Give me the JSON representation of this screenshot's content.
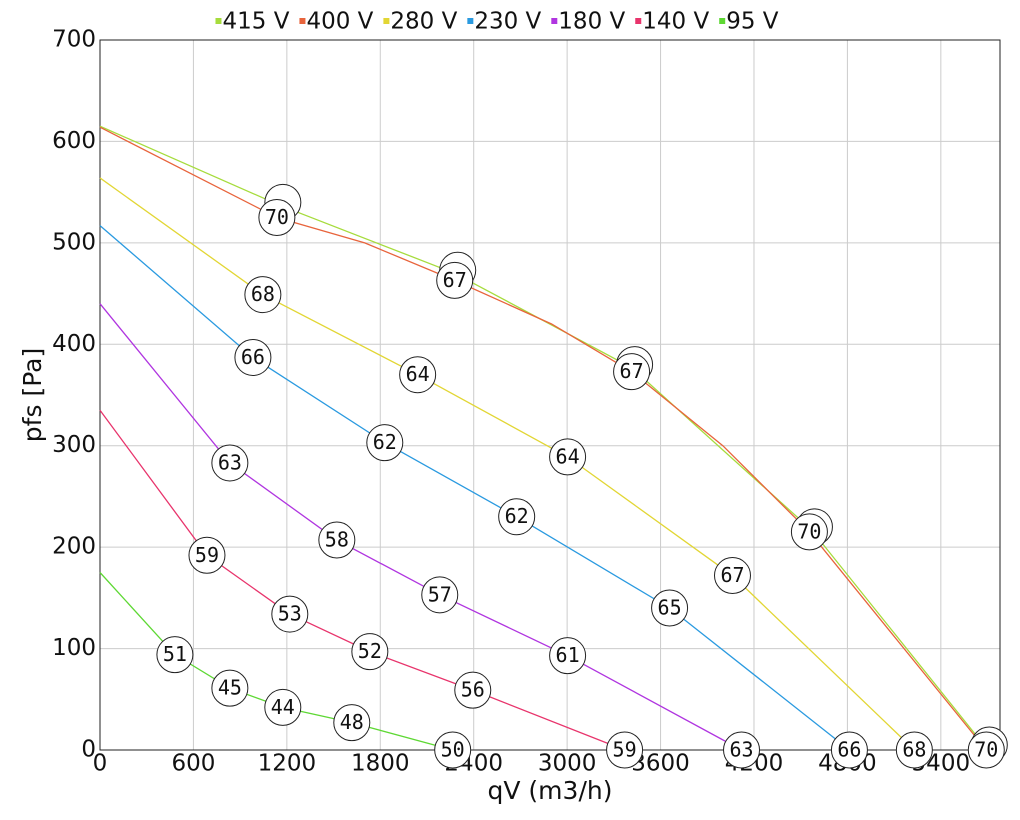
{
  "chart_data": {
    "type": "line",
    "x_label": "qV (m3/h)",
    "y_label": "pfs [Pa]",
    "xlim": [
      0,
      5780
    ],
    "ylim": [
      0,
      700
    ],
    "xticks": [
      0,
      600,
      1200,
      1800,
      2400,
      3000,
      3600,
      4200,
      4800,
      5400
    ],
    "yticks": [
      0,
      100,
      200,
      300,
      400,
      500,
      600,
      700
    ],
    "grid": true,
    "legend": "top",
    "series": [
      {
        "name": "415 V",
        "color": "#a6dc3c",
        "x": [
          0,
          1155,
          2278,
          3414,
          4569,
          5692
        ],
        "values": [
          615,
          537,
          470,
          377,
          217,
          2
        ]
      },
      {
        "name": "400 V",
        "color": "#e8643c",
        "x": [
          0,
          1136,
          1700,
          2278,
          2900,
          3414,
          4000,
          4556,
          5692
        ],
        "values": [
          614,
          525,
          500,
          463,
          420,
          373,
          300,
          215,
          0
        ],
        "sound": [
          null,
          70,
          null,
          67,
          null,
          67,
          null,
          70,
          70
        ]
      },
      {
        "name": "280 V",
        "color": "#e2d634",
        "x": [
          0,
          1046,
          2040,
          3003,
          4062,
          5230
        ],
        "values": [
          564,
          449,
          370,
          289,
          172,
          0
        ],
        "sound": [
          null,
          68,
          64,
          64,
          67,
          68
        ]
      },
      {
        "name": "230 V",
        "color": "#2a9ae0",
        "x": [
          0,
          982,
          1829,
          2676,
          3658,
          4813
        ],
        "values": [
          517,
          387,
          303,
          230,
          140,
          0
        ],
        "sound": [
          null,
          66,
          62,
          62,
          65,
          66
        ]
      },
      {
        "name": "180 V",
        "color": "#b035e0",
        "x": [
          0,
          834,
          1521,
          2182,
          3003,
          4120
        ],
        "values": [
          440,
          283,
          207,
          153,
          93,
          0
        ],
        "sound": [
          null,
          63,
          58,
          57,
          61,
          63
        ]
      },
      {
        "name": "140 V",
        "color": "#e8346c",
        "x": [
          0,
          687,
          1219,
          1733,
          2394,
          3369
        ],
        "values": [
          335,
          192,
          134,
          97,
          59,
          0
        ],
        "sound": [
          null,
          59,
          53,
          52,
          56,
          59
        ]
      },
      {
        "name": "95 V",
        "color": "#5ed834",
        "x": [
          0,
          481,
          834,
          1174,
          1617,
          2265
        ],
        "values": [
          175,
          94,
          61,
          42,
          27,
          0
        ],
        "sound": [
          null,
          51,
          45,
          44,
          48,
          50
        ]
      }
    ]
  }
}
